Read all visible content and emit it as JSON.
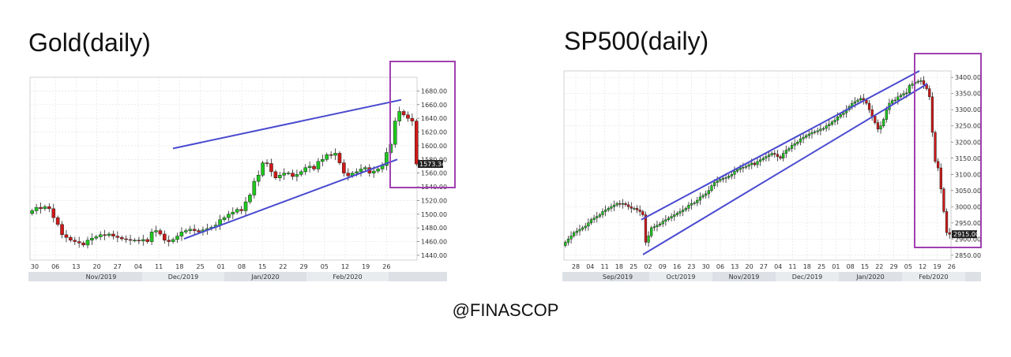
{
  "footer": "@FINASCOP",
  "colors": {
    "up": "#1ec81e",
    "down": "#d01818",
    "channel": "#4a4ad0",
    "highlight": "#a040b0",
    "grid": "#e4e4e4",
    "axis_band": "#dde1e6"
  },
  "chart_data": [
    {
      "type": "candlestick",
      "title": "Gold(daily)",
      "ylim": [
        1433,
        1700
      ],
      "y_ticks": [
        "1680.00",
        "1660.00",
        "1640.00",
        "1620.00",
        "1600.00",
        "1580.00",
        "1560.00",
        "1540.00",
        "1520.00",
        "1500.00",
        "1480.00",
        "1460.00",
        "1440.00"
      ],
      "x_ticks": [
        "30",
        "06",
        "13",
        "20",
        "27",
        "04",
        "11",
        "18",
        "25",
        "01",
        "08",
        "15",
        "22",
        "29",
        "05",
        "12",
        "19",
        "26"
      ],
      "months": [
        "Nov/2019",
        "Dec/2019",
        "Jan/2020",
        "Feb/2020"
      ],
      "last_value_label": "1573.34",
      "closes": [
        1505,
        1510,
        1508,
        1511,
        1508,
        1495,
        1485,
        1470,
        1466,
        1462,
        1460,
        1458,
        1455,
        1462,
        1465,
        1467,
        1470,
        1469,
        1471,
        1468,
        1466,
        1464,
        1463,
        1462,
        1462,
        1461,
        1463,
        1460,
        1474,
        1476,
        1471,
        1462,
        1460,
        1463,
        1468,
        1474,
        1476,
        1478,
        1476,
        1474,
        1477,
        1479,
        1481,
        1484,
        1492,
        1495,
        1500,
        1503,
        1507,
        1505,
        1518,
        1528,
        1548,
        1557,
        1575,
        1574,
        1562,
        1553,
        1557,
        1560,
        1560,
        1555,
        1558,
        1562,
        1568,
        1570,
        1566,
        1577,
        1580,
        1587,
        1586,
        1589,
        1575,
        1560,
        1556,
        1560,
        1562,
        1566,
        1568,
        1560,
        1563,
        1566,
        1571,
        1590,
        1602,
        1636,
        1650,
        1645,
        1640,
        1636,
        1573.34
      ]
    },
    {
      "type": "candlestick",
      "title": "SP500(daily)",
      "ylim": [
        2835,
        3420
      ],
      "y_ticks": [
        "3400.00",
        "3350.00",
        "3300.00",
        "3250.00",
        "3200.00",
        "3150.00",
        "3100.00",
        "3050.00",
        "3000.00",
        "2950.00",
        "2900.00",
        "2850.00"
      ],
      "x_ticks": [
        "28",
        "04",
        "11",
        "18",
        "25",
        "02",
        "09",
        "16",
        "23",
        "30",
        "06",
        "13",
        "20",
        "27",
        "04",
        "11",
        "18",
        "25",
        "01",
        "08",
        "15",
        "22",
        "29",
        "05",
        "12",
        "19",
        "26"
      ],
      "months": [
        "Sep/2019",
        "Oct/2019",
        "Nov/2019",
        "Dec/2019",
        "Jan/2020",
        "Feb/2020"
      ],
      "last_value_label": "2915.00",
      "closes": [
        2890,
        2900,
        2910,
        2920,
        2925,
        2930,
        2935,
        2940,
        2950,
        2960,
        2965,
        2970,
        2975,
        2985,
        2990,
        2995,
        3000,
        3005,
        3010,
        3008,
        3010,
        3006,
        3000,
        2995,
        2995,
        2990,
        2985,
        2975,
        2890,
        2910,
        2935,
        2938,
        2943,
        2947,
        2955,
        2960,
        2965,
        2970,
        2975,
        2980,
        2985,
        2990,
        2995,
        3005,
        3010,
        3012,
        3020,
        3030,
        3035,
        3040,
        3050,
        3065,
        3075,
        3080,
        3085,
        3088,
        3090,
        3095,
        3100,
        3110,
        3115,
        3120,
        3122,
        3125,
        3130,
        3135,
        3130,
        3140,
        3145,
        3150,
        3155,
        3160,
        3165,
        3162,
        3155,
        3150,
        3165,
        3175,
        3180,
        3190,
        3195,
        3200,
        3210,
        3215,
        3220,
        3225,
        3230,
        3232,
        3235,
        3240,
        3242,
        3250,
        3255,
        3262,
        3268,
        3278,
        3285,
        3290,
        3300,
        3310,
        3320,
        3325,
        3330,
        3335,
        3330,
        3320,
        3300,
        3280,
        3260,
        3240,
        3250,
        3270,
        3300,
        3320,
        3328,
        3330,
        3340,
        3345,
        3350,
        3352,
        3375,
        3380,
        3385,
        3388,
        3390,
        3378,
        3365,
        3340,
        3230,
        3140,
        3120,
        3055,
        2985,
        2920,
        2915
      ]
    }
  ]
}
